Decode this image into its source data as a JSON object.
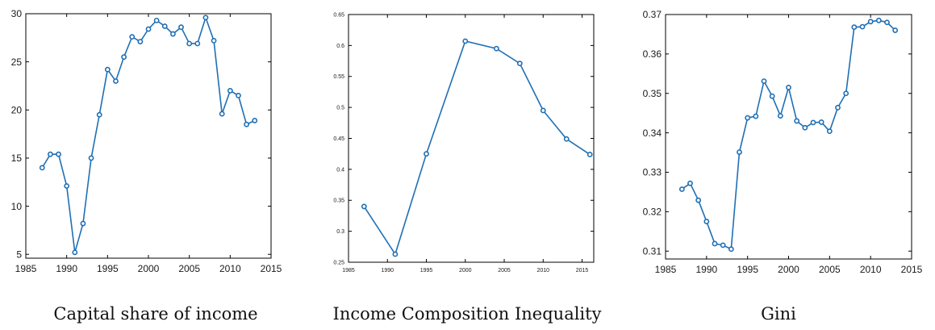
{
  "colors": {
    "series": "#1f6fb4",
    "axis": "#000000"
  },
  "captions": [
    "Capital share of income",
    "Income Composition Inequality",
    "Gini"
  ],
  "chart_data": [
    {
      "type": "line",
      "title": "Capital share of income",
      "xlim": [
        1985,
        2015
      ],
      "ylim": [
        4.6,
        30
      ],
      "xticks": [
        1985,
        1990,
        1995,
        2000,
        2005,
        2010,
        2015
      ],
      "yticks": [
        5,
        10,
        15,
        20,
        25,
        30
      ],
      "grid": false,
      "series": [
        {
          "x": [
            1987,
            1988,
            1989,
            1990,
            1991,
            1992,
            1993,
            1994,
            1995,
            1996,
            1997,
            1998,
            1999,
            2000,
            2001,
            2002,
            2003,
            2004,
            2005,
            2006,
            2007,
            2008,
            2009,
            2010,
            2011,
            2012,
            2013
          ],
          "y": [
            14.0,
            15.4,
            15.4,
            12.1,
            5.2,
            8.2,
            15.0,
            19.5,
            24.2,
            23.0,
            25.5,
            27.6,
            27.1,
            28.4,
            29.3,
            28.7,
            27.9,
            28.6,
            26.9,
            26.9,
            29.6,
            27.2,
            19.6,
            22.0,
            21.5,
            18.5,
            18.9
          ]
        }
      ]
    },
    {
      "type": "line",
      "title": "Income Composition Inequality",
      "xlim": [
        1985,
        2016.5
      ],
      "ylim": [
        0.25,
        0.65
      ],
      "xticks": [
        1985,
        1990,
        1995,
        2000,
        2005,
        2010,
        2015
      ],
      "yticks": [
        0.25,
        0.3,
        0.35,
        0.4,
        0.45,
        0.5,
        0.55,
        0.6,
        0.65
      ],
      "grid": false,
      "series": [
        {
          "x": [
            1987,
            1991,
            1995,
            2000,
            2004,
            2007,
            2010,
            2013,
            2016
          ],
          "y": [
            0.34,
            0.263,
            0.425,
            0.607,
            0.595,
            0.571,
            0.495,
            0.449,
            0.424
          ]
        }
      ]
    },
    {
      "type": "line",
      "title": "Gini",
      "xlim": [
        1985,
        2015
      ],
      "ylim": [
        0.308,
        0.37
      ],
      "xticks": [
        1985,
        1990,
        1995,
        2000,
        2005,
        2010,
        2015
      ],
      "yticks": [
        0.31,
        0.32,
        0.33,
        0.34,
        0.35,
        0.36,
        0.37
      ],
      "grid": false,
      "series": [
        {
          "x": [
            1987,
            1988,
            1989,
            1990,
            1991,
            1992,
            1993,
            1994,
            1995,
            1996,
            1997,
            1998,
            1999,
            2000,
            2001,
            2002,
            2003,
            2004,
            2005,
            2006,
            2007,
            2008,
            2009,
            2010,
            2011,
            2012,
            2013
          ],
          "y": [
            0.3257,
            0.3272,
            0.3229,
            0.3175,
            0.3119,
            0.3115,
            0.3105,
            0.3351,
            0.3438,
            0.3442,
            0.3531,
            0.3493,
            0.3443,
            0.3515,
            0.343,
            0.3413,
            0.3426,
            0.3427,
            0.3404,
            0.3464,
            0.35,
            0.3668,
            0.3669,
            0.3682,
            0.3685,
            0.368,
            0.366
          ]
        }
      ]
    }
  ]
}
